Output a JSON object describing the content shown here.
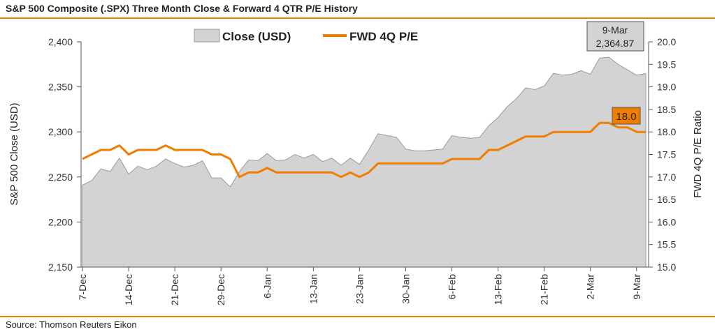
{
  "header": {
    "title": "S&P 500 Composite (.SPX) Three Month Close & Forward 4 QTR P/E History"
  },
  "footer": {
    "source": "Source: Thomson Reuters Eikon"
  },
  "colors": {
    "accent": "#f07d00",
    "area_fill": "#d3d3d3",
    "area_stroke": "#9a9a9a",
    "callout_gray": "#d3d3d3"
  },
  "chart_data": {
    "type": "area",
    "title": "S&P 500 Composite (.SPX) Three Month Close & Forward 4 QTR P/E History",
    "ylabel": "S&P 500 Close (USD)",
    "y2label": "FWD 4Q P/E Ratio",
    "ylim": [
      2150,
      2400
    ],
    "y2lim": [
      15.0,
      20.0
    ],
    "yticks": [
      "2,400",
      "2,350",
      "2,300",
      "2,250",
      "2,200",
      "2,150"
    ],
    "y2ticks": [
      "20.0",
      "19.5",
      "19.0",
      "18.5",
      "18.0",
      "17.5",
      "17.0",
      "16.5",
      "16.0",
      "15.5",
      "15.0"
    ],
    "xtick_labels": [
      {
        "label": "7-Dec",
        "index": 0
      },
      {
        "label": "14-Dec",
        "index": 5
      },
      {
        "label": "21-Dec",
        "index": 10
      },
      {
        "label": "29-Dec",
        "index": 15
      },
      {
        "label": "6-Jan",
        "index": 20
      },
      {
        "label": "13-Jan",
        "index": 25
      },
      {
        "label": "23-Jan",
        "index": 30
      },
      {
        "label": "30-Jan",
        "index": 35
      },
      {
        "label": "6-Feb",
        "index": 40
      },
      {
        "label": "13-Feb",
        "index": 45
      },
      {
        "label": "21-Feb",
        "index": 50
      },
      {
        "label": "2-Mar",
        "index": 55
      },
      {
        "label": "9-Mar",
        "index": 60
      }
    ],
    "legend": {
      "placement": "top",
      "close_label": "Close (USD)",
      "pe_label": "FWD 4Q P/E"
    },
    "grid": false,
    "series": [
      {
        "name": "Close (USD)",
        "type": "area",
        "axis": "left",
        "values": [
          2241,
          2246,
          2259,
          2256,
          2271,
          2253,
          2262,
          2258,
          2262,
          2270,
          2265,
          2261,
          2263,
          2268,
          2249,
          2249,
          2239,
          2256,
          2269,
          2268,
          2276,
          2268,
          2269,
          2275,
          2271,
          2275,
          2267,
          2271,
          2263,
          2271,
          2264,
          2280,
          2298,
          2296,
          2294,
          2281,
          2279,
          2279,
          2280,
          2281,
          2296,
          2294,
          2293,
          2294,
          2307,
          2316,
          2328,
          2337,
          2349,
          2347,
          2351,
          2365,
          2363,
          2364,
          2368,
          2364,
          2382,
          2383,
          2375,
          2369,
          2363,
          2364.87
        ]
      },
      {
        "name": "FWD 4Q P/E",
        "type": "line",
        "axis": "right",
        "values": [
          17.4,
          17.5,
          17.6,
          17.6,
          17.7,
          17.5,
          17.6,
          17.6,
          17.6,
          17.7,
          17.6,
          17.6,
          17.6,
          17.6,
          17.5,
          17.5,
          17.4,
          17.0,
          17.1,
          17.1,
          17.2,
          17.1,
          17.1,
          17.1,
          17.1,
          17.1,
          17.1,
          17.1,
          17.0,
          17.1,
          17.0,
          17.1,
          17.3,
          17.3,
          17.3,
          17.3,
          17.3,
          17.3,
          17.3,
          17.3,
          17.4,
          17.4,
          17.4,
          17.4,
          17.6,
          17.6,
          17.7,
          17.8,
          17.9,
          17.9,
          17.9,
          18.0,
          18.0,
          18.0,
          18.0,
          18.0,
          18.2,
          18.2,
          18.1,
          18.1,
          18.0,
          18.0
        ]
      }
    ],
    "annotations": [
      {
        "series": "Close (USD)",
        "date": "9-Mar",
        "value": "2,364.87"
      },
      {
        "series": "FWD 4Q P/E",
        "value": "18.0"
      }
    ]
  }
}
